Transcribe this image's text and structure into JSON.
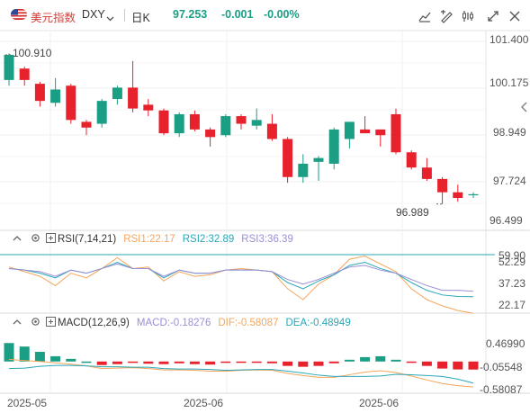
{
  "header": {
    "name": "美元指数",
    "symbol": "DXY",
    "period": "日K",
    "price": "97.253",
    "change": "-0.001",
    "change_pct": "-0.00%"
  },
  "colors": {
    "up": "#e8222d",
    "down": "#1a9e84",
    "rsi1": "#f5a55a",
    "rsi2": "#2aa7b8",
    "rsi3": "#9b8fd6",
    "macd": "#9b8fd6",
    "dif": "#f5a55a",
    "dea": "#2aa7b8"
  },
  "price_axis": [
    "101.400",
    "100.175",
    "98.949",
    "97.724",
    "96.499"
  ],
  "annotations": {
    "high": "100.910",
    "low": "96.989"
  },
  "rsi": {
    "title": "RSI(7,14,21)",
    "rsi1": "RSI1:22.17",
    "rsi2": "RSI2:32.89",
    "rsi3": "RSI3:36.39",
    "axis": [
      "59.90",
      "52.29",
      "37.23",
      "22.17"
    ]
  },
  "macd": {
    "title": "MACD(12,26,9)",
    "macd": "MACD:-0.18276",
    "dif": "DIF:-0.58087",
    "dea": "DEA:-0.48949",
    "axis": [
      "0.46990",
      "-0.05548",
      "-0.58087"
    ]
  },
  "x_axis": [
    "2025-05",
    "2025-06",
    "2025-06"
  ],
  "chart_data": [
    {
      "type": "candlestick",
      "title": "",
      "ylim": [
        96.3,
        101.5
      ],
      "candles": [
        {
          "o": 100.25,
          "c": 100.91,
          "h": 100.95,
          "l": 100.1
        },
        {
          "o": 100.55,
          "c": 100.25,
          "h": 100.6,
          "l": 100.1
        },
        {
          "o": 100.15,
          "c": 99.7,
          "h": 100.2,
          "l": 99.55
        },
        {
          "o": 99.65,
          "c": 100.0,
          "h": 100.3,
          "l": 99.55
        },
        {
          "o": 100.1,
          "c": 99.2,
          "h": 100.15,
          "l": 99.1
        },
        {
          "o": 99.15,
          "c": 99.0,
          "h": 99.2,
          "l": 98.8
        },
        {
          "o": 99.1,
          "c": 99.7,
          "h": 99.75,
          "l": 99.0
        },
        {
          "o": 99.75,
          "c": 100.05,
          "h": 100.1,
          "l": 99.6
        },
        {
          "o": 100.05,
          "c": 99.5,
          "h": 100.75,
          "l": 99.4
        },
        {
          "o": 99.6,
          "c": 99.45,
          "h": 99.75,
          "l": 99.3
        },
        {
          "o": 99.45,
          "c": 98.85,
          "h": 99.5,
          "l": 98.8
        },
        {
          "o": 98.85,
          "c": 99.35,
          "h": 99.4,
          "l": 98.75
        },
        {
          "o": 99.35,
          "c": 98.95,
          "h": 99.45,
          "l": 98.9
        },
        {
          "o": 98.95,
          "c": 98.75,
          "h": 99.0,
          "l": 98.5
        },
        {
          "o": 98.8,
          "c": 99.3,
          "h": 99.35,
          "l": 98.75
        },
        {
          "o": 99.3,
          "c": 99.1,
          "h": 99.35,
          "l": 98.95
        },
        {
          "o": 99.05,
          "c": 99.2,
          "h": 99.5,
          "l": 98.95
        },
        {
          "o": 99.1,
          "c": 98.7,
          "h": 99.35,
          "l": 98.65
        },
        {
          "o": 98.7,
          "c": 97.7,
          "h": 98.75,
          "l": 97.55
        },
        {
          "o": 97.7,
          "c": 98.05,
          "h": 98.3,
          "l": 97.55
        },
        {
          "o": 98.1,
          "c": 98.2,
          "h": 98.25,
          "l": 97.6
        },
        {
          "o": 98.05,
          "c": 98.95,
          "h": 99.0,
          "l": 97.9
        },
        {
          "o": 98.7,
          "c": 99.15,
          "h": 99.15,
          "l": 98.45
        },
        {
          "o": 98.95,
          "c": 98.85,
          "h": 99.3,
          "l": 98.85
        },
        {
          "o": 98.95,
          "c": 98.8,
          "h": 98.95,
          "l": 98.5
        },
        {
          "o": 99.35,
          "c": 98.35,
          "h": 99.5,
          "l": 98.3
        },
        {
          "o": 98.35,
          "c": 97.95,
          "h": 98.4,
          "l": 97.9
        },
        {
          "o": 97.95,
          "c": 97.65,
          "h": 98.2,
          "l": 97.6
        },
        {
          "o": 97.65,
          "c": 97.3,
          "h": 97.7,
          "l": 96.99
        },
        {
          "o": 97.3,
          "c": 97.15,
          "h": 97.5,
          "l": 97.05
        },
        {
          "o": 97.25,
          "c": 97.25,
          "h": 97.3,
          "l": 97.15
        }
      ]
    },
    {
      "type": "line",
      "title": "RSI(7,14,21)",
      "ylim": [
        20,
        64
      ],
      "series": [
        {
          "name": "RSI1",
          "values": [
            52,
            49,
            46,
            40,
            48,
            45,
            51,
            58,
            51,
            52,
            43,
            49,
            46,
            47,
            50,
            51,
            50,
            49,
            38,
            31,
            41,
            47,
            57,
            59,
            54,
            49,
            38,
            31,
            27,
            24,
            22.17
          ]
        },
        {
          "name": "RSI2",
          "values": [
            51,
            50,
            48,
            45,
            50,
            48,
            51,
            55,
            51,
            51,
            45,
            50,
            48,
            48,
            50,
            50,
            50,
            49,
            42,
            38,
            43,
            47,
            53,
            55,
            51,
            48,
            42,
            37,
            34,
            33,
            32.89
          ]
        },
        {
          "name": "RSI3",
          "values": [
            51,
            50,
            49,
            46,
            50,
            48,
            51,
            54,
            51,
            51,
            46,
            50,
            48,
            48,
            50,
            50,
            50,
            49,
            44,
            41,
            44,
            48,
            52,
            53,
            50,
            48,
            44,
            40,
            37,
            37,
            36.39
          ]
        }
      ]
    },
    {
      "type": "bar",
      "title": "MACD(12,26,9)",
      "ylim": [
        -0.7,
        0.65
      ],
      "series": [
        {
          "name": "MACD",
          "values": [
            0.42,
            0.34,
            0.22,
            0.12,
            0.06,
            0.0,
            -0.08,
            -0.06,
            -0.02,
            -0.05,
            -0.06,
            -0.04,
            -0.06,
            -0.07,
            -0.03,
            -0.02,
            -0.02,
            -0.04,
            -0.1,
            -0.12,
            -0.1,
            -0.04,
            0.04,
            0.1,
            0.12,
            0.04,
            -0.03,
            -0.1,
            -0.16,
            -0.18,
            -0.18276
          ]
        },
        {
          "name": "DIF",
          "values": [
            0.05,
            0.02,
            0.0,
            -0.03,
            -0.06,
            -0.1,
            -0.16,
            -0.15,
            -0.14,
            -0.16,
            -0.19,
            -0.19,
            -0.2,
            -0.22,
            -0.22,
            -0.2,
            -0.19,
            -0.2,
            -0.27,
            -0.32,
            -0.36,
            -0.36,
            -0.3,
            -0.24,
            -0.21,
            -0.25,
            -0.33,
            -0.42,
            -0.5,
            -0.55,
            -0.58087
          ]
        },
        {
          "name": "DEA",
          "values": [
            -0.16,
            -0.15,
            -0.11,
            -0.09,
            -0.09,
            -0.1,
            -0.12,
            -0.12,
            -0.13,
            -0.13,
            -0.16,
            -0.17,
            -0.17,
            -0.18,
            -0.2,
            -0.19,
            -0.18,
            -0.18,
            -0.22,
            -0.26,
            -0.31,
            -0.34,
            -0.34,
            -0.34,
            -0.33,
            -0.29,
            -0.3,
            -0.32,
            -0.34,
            -0.4,
            -0.48949
          ]
        }
      ]
    }
  ]
}
